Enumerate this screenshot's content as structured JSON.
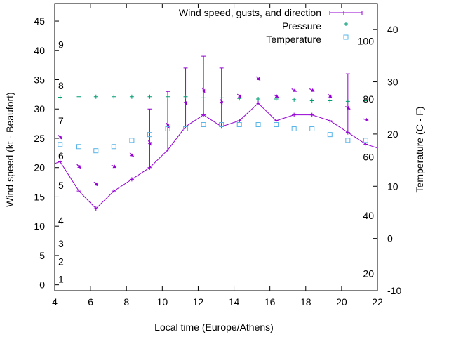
{
  "chart_data": {
    "type": "line",
    "xlabel": "Local time (Europe/Athens)",
    "ylabel_left": "Wind speed (kt - Beaufort)",
    "ylabel_right": "Temperature (C - F)",
    "xlim": [
      4,
      22
    ],
    "ylim_left": [
      -1,
      48
    ],
    "ylim_right": [
      -10,
      45
    ],
    "x_ticks": [
      4,
      6,
      8,
      10,
      12,
      14,
      16,
      18,
      20,
      22
    ],
    "y_ticks_left": [
      0,
      5,
      10,
      15,
      20,
      25,
      30,
      35,
      40,
      45
    ],
    "y_ticks_right": [
      -10,
      0,
      10,
      20,
      30,
      40
    ],
    "beaufort_labels": [
      {
        "label": "1",
        "kt": 1
      },
      {
        "label": "2",
        "kt": 4
      },
      {
        "label": "3",
        "kt": 7
      },
      {
        "label": "4",
        "kt": 11
      },
      {
        "label": "5",
        "kt": 17
      },
      {
        "label": "6",
        "kt": 22
      },
      {
        "label": "7",
        "kt": 28
      },
      {
        "label": "8",
        "kt": 34
      },
      {
        "label": "9",
        "kt": 41
      }
    ],
    "fahrenheit_labels": [
      {
        "label": "20",
        "c": -6.7
      },
      {
        "label": "40",
        "c": 4.4
      },
      {
        "label": "60",
        "c": 15.6
      },
      {
        "label": "80",
        "c": 26.7
      },
      {
        "label": "100",
        "c": 37.8
      }
    ],
    "legend": {
      "wind": "Wind speed, gusts, and direction",
      "pressure": "Pressure",
      "temperature": "Temperature"
    },
    "colors": {
      "wind": "#9400d3",
      "pressure": "#009e73",
      "temperature": "#56b4e9"
    },
    "wind": [
      {
        "x": 3.3,
        "speed": 20,
        "gust": null,
        "dir": 135
      },
      {
        "x": 4.3,
        "speed": 21,
        "gust": null,
        "dir": 135
      },
      {
        "x": 5.35,
        "speed": 16,
        "gust": null,
        "dir": 135
      },
      {
        "x": 6.3,
        "speed": 13,
        "gust": null,
        "dir": 135
      },
      {
        "x": 7.3,
        "speed": 16,
        "gust": null,
        "dir": 120
      },
      {
        "x": 8.3,
        "speed": 18,
        "gust": null,
        "dir": 135
      },
      {
        "x": 9.3,
        "speed": 20,
        "gust": 30,
        "dir": 150
      },
      {
        "x": 10.3,
        "speed": 23,
        "gust": 33,
        "dir": 150
      },
      {
        "x": 11.3,
        "speed": 27,
        "gust": 37,
        "dir": 165
      },
      {
        "x": 12.3,
        "speed": 29,
        "gust": 39,
        "dir": 150
      },
      {
        "x": 13.3,
        "speed": 27,
        "gust": 37,
        "dir": 165
      },
      {
        "x": 14.3,
        "speed": 28,
        "gust": null,
        "dir": 135
      },
      {
        "x": 15.35,
        "speed": 31,
        "gust": null,
        "dir": 135
      },
      {
        "x": 16.35,
        "speed": 28,
        "gust": null,
        "dir": 120
      },
      {
        "x": 17.35,
        "speed": 29,
        "gust": null,
        "dir": 120
      },
      {
        "x": 18.35,
        "speed": 29,
        "gust": null,
        "dir": 120
      },
      {
        "x": 19.35,
        "speed": 28,
        "gust": null,
        "dir": 135
      },
      {
        "x": 20.35,
        "speed": 26,
        "gust": 36,
        "dir": 120
      },
      {
        "x": 21.35,
        "speed": 24,
        "gust": null,
        "dir": 105
      },
      {
        "x": 22.35,
        "speed": 23,
        "gust": null,
        "dir": 105
      }
    ],
    "pressure": [
      {
        "x": 4.3,
        "y": 32
      },
      {
        "x": 5.35,
        "y": 32.1
      },
      {
        "x": 6.3,
        "y": 32.1
      },
      {
        "x": 7.3,
        "y": 32.1
      },
      {
        "x": 8.3,
        "y": 32.1
      },
      {
        "x": 9.3,
        "y": 32.1
      },
      {
        "x": 10.3,
        "y": 32.1
      },
      {
        "x": 11.3,
        "y": 32.1
      },
      {
        "x": 12.3,
        "y": 31.9
      },
      {
        "x": 13.3,
        "y": 31.9
      },
      {
        "x": 14.3,
        "y": 31.8
      },
      {
        "x": 15.35,
        "y": 31.7
      },
      {
        "x": 16.35,
        "y": 31.7
      },
      {
        "x": 17.35,
        "y": 31.6
      },
      {
        "x": 18.35,
        "y": 31.4
      },
      {
        "x": 19.35,
        "y": 31.4
      },
      {
        "x": 20.35,
        "y": 31.3
      },
      {
        "x": 21.35,
        "y": 31.4
      }
    ],
    "temperature": [
      {
        "x": 4.3,
        "y": 18.0
      },
      {
        "x": 5.35,
        "y": 17.6
      },
      {
        "x": 6.3,
        "y": 16.8
      },
      {
        "x": 7.3,
        "y": 17.6
      },
      {
        "x": 8.3,
        "y": 18.8
      },
      {
        "x": 9.3,
        "y": 19.9
      },
      {
        "x": 10.3,
        "y": 21.0
      },
      {
        "x": 11.3,
        "y": 21.0
      },
      {
        "x": 12.3,
        "y": 21.8
      },
      {
        "x": 13.3,
        "y": 21.8
      },
      {
        "x": 14.3,
        "y": 21.8
      },
      {
        "x": 15.35,
        "y": 21.8
      },
      {
        "x": 16.35,
        "y": 21.8
      },
      {
        "x": 17.35,
        "y": 21.0
      },
      {
        "x": 18.35,
        "y": 21.0
      },
      {
        "x": 19.35,
        "y": 19.9
      },
      {
        "x": 20.35,
        "y": 18.8
      },
      {
        "x": 21.35,
        "y": 18.8
      }
    ]
  }
}
